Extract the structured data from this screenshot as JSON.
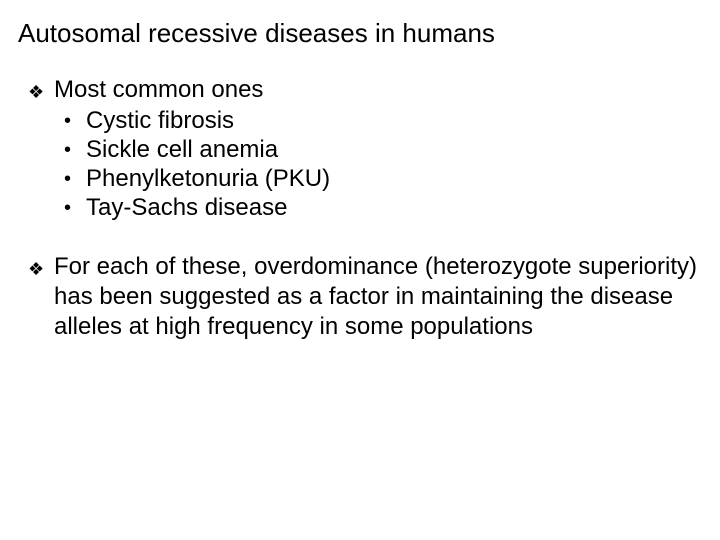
{
  "title": "Autosomal recessive diseases in humans",
  "section1": {
    "heading": "Most common ones",
    "items": [
      "Cystic fibrosis",
      "Sickle cell anemia",
      "Phenylketonuria (PKU)",
      "Tay-Sachs disease"
    ]
  },
  "section2": {
    "text": "For each of these, overdominance (heterozygote superiority) has been suggested as a factor in maintaining the disease alleles at high frequency in some populations"
  },
  "glyphs": {
    "diamond": "❖",
    "dot": "•"
  },
  "style": {
    "background_color": "#ffffff",
    "text_color": "#000000",
    "title_fontsize": 26,
    "body_fontsize": 24,
    "font_family": "Comic Sans MS"
  }
}
